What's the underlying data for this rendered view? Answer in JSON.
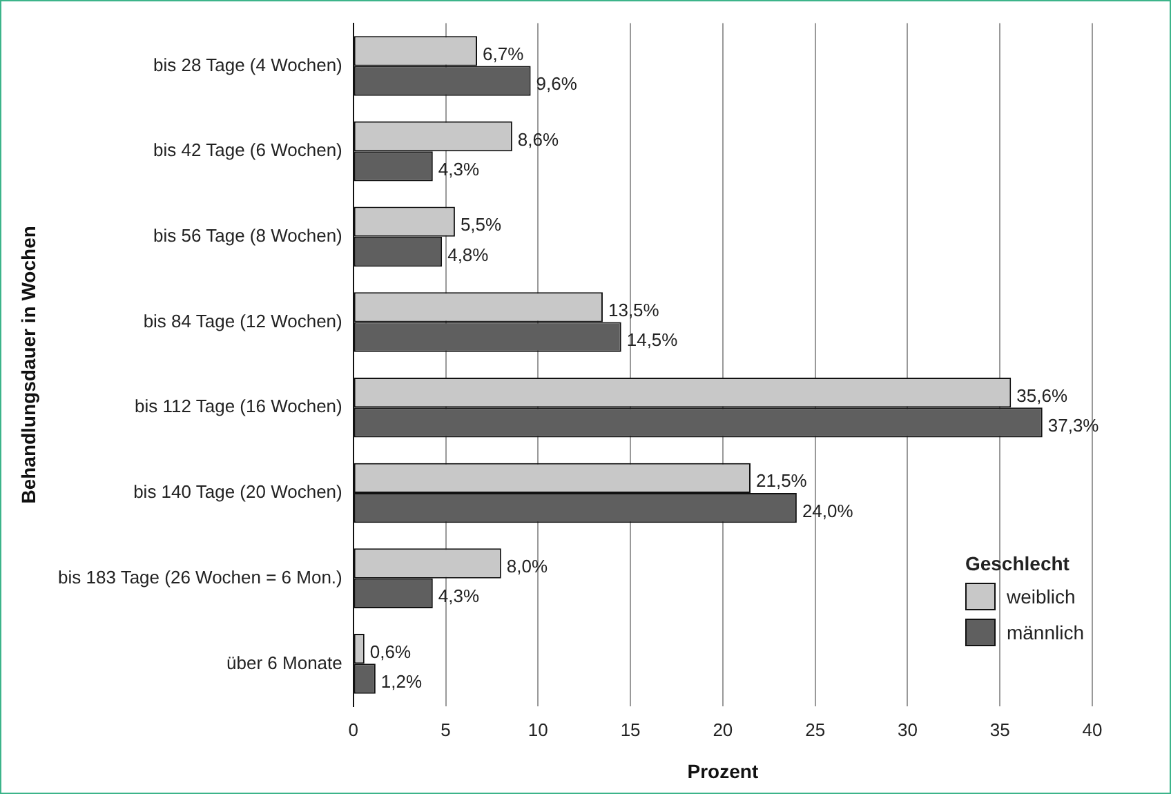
{
  "chart_data": {
    "type": "bar",
    "orientation": "horizontal",
    "xlabel": "Prozent",
    "ylabel": "Behandlungsdauer in Wochen",
    "legend_title": "Geschlecht",
    "legend": "bottom right",
    "grid": "x",
    "categories": [
      "bis 28 Tage (4 Wochen)",
      "bis 42 Tage (6 Wochen)",
      "bis 56 Tage (8 Wochen)",
      "bis 84 Tage (12 Wochen)",
      "bis 112 Tage (16 Wochen)",
      "bis 140 Tage (20 Wochen)",
      "bis 183 Tage (26 Wochen = 6 Mon.)",
      "über 6 Monate"
    ],
    "xlim": [
      0,
      40
    ],
    "xticks": [
      0,
      5,
      10,
      15,
      20,
      25,
      30,
      35,
      40
    ],
    "series": [
      {
        "name": "weiblich",
        "color": "#c8c8c8",
        "values": [
          6.7,
          8.6,
          5.5,
          13.5,
          35.6,
          21.5,
          8.0,
          0.6
        ],
        "value_labels": [
          "6,7%",
          "8,6%",
          "5,5%",
          "13,5%",
          "35,6%",
          "21,5%",
          "8,0%",
          "0,6%"
        ]
      },
      {
        "name": "männlich",
        "color": "#5f5f5f",
        "values": [
          9.6,
          4.3,
          4.8,
          14.5,
          37.3,
          24.0,
          4.3,
          1.2
        ],
        "value_labels": [
          "9,6%",
          "4,3%",
          "4,8%",
          "14,5%",
          "37,3%",
          "24,0%",
          "4,3%",
          "1,2%"
        ]
      }
    ]
  }
}
